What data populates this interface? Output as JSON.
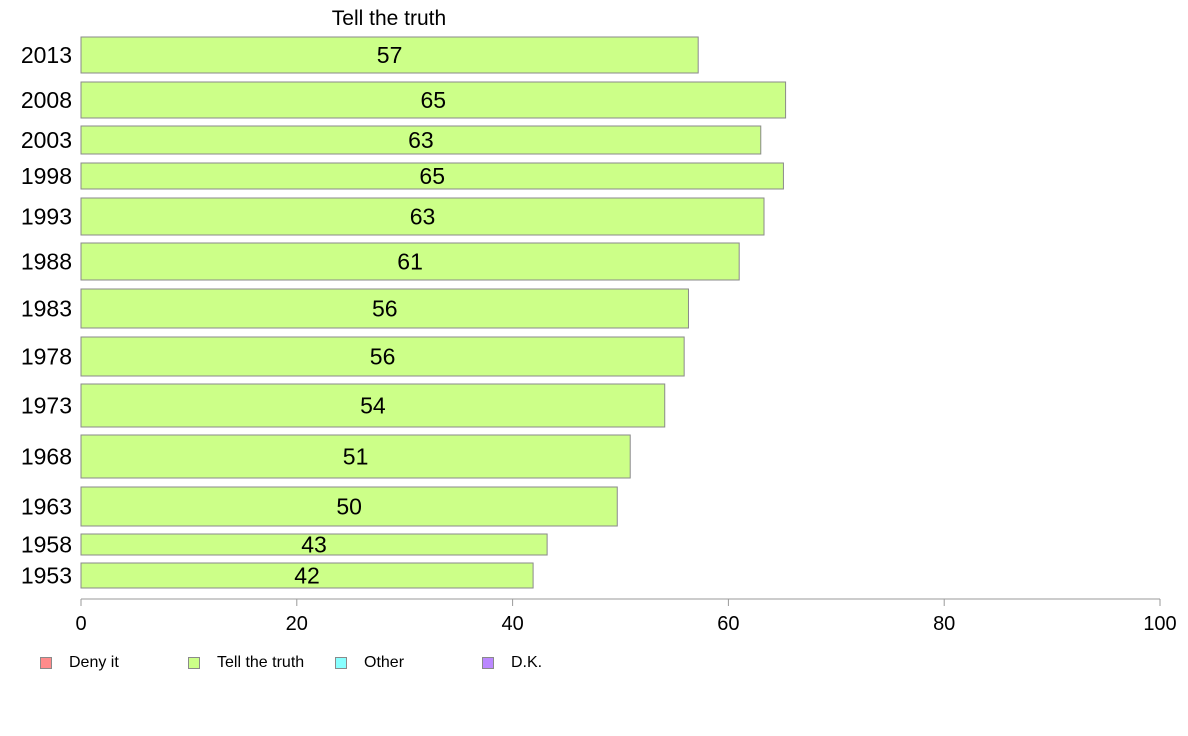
{
  "chart_data": {
    "type": "bar",
    "orientation": "horizontal",
    "title": "Tell the truth",
    "categories": [
      "2013",
      "2008",
      "2003",
      "1998",
      "1993",
      "1988",
      "1983",
      "1978",
      "1973",
      "1968",
      "1963",
      "1958",
      "1953"
    ],
    "series": [
      {
        "name": "Tell the truth",
        "color": "#ccff88",
        "values": [
          57.2,
          65.3,
          63.0,
          65.1,
          63.3,
          61.0,
          56.3,
          55.9,
          54.1,
          50.9,
          49.7,
          43.2,
          41.9
        ],
        "labels": [
          "57",
          "65",
          "63",
          "65",
          "63",
          "61",
          "56",
          "56",
          "54",
          "51",
          "50",
          "43",
          "42"
        ]
      }
    ],
    "xlim": [
      0,
      100
    ],
    "xticks": [
      "0",
      "20",
      "40",
      "60",
      "80",
      "100"
    ],
    "grid": false,
    "legend": {
      "position": "bottom-left",
      "items": [
        {
          "label": "Deny it",
          "color": "#ff8b8b"
        },
        {
          "label": "Tell the truth",
          "color": "#ccff88"
        },
        {
          "label": "Other",
          "color": "#88ffff"
        },
        {
          "label": "D.K.",
          "color": "#bb88ff"
        }
      ]
    }
  }
}
